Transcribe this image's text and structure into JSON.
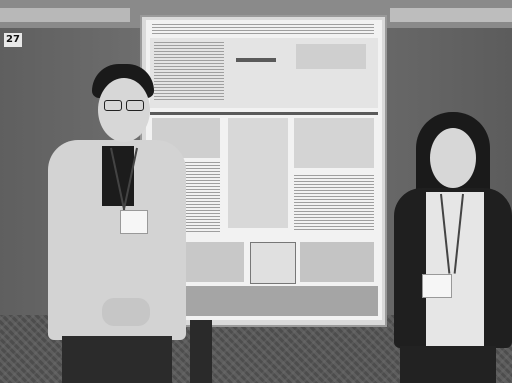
{
  "scene": {
    "description_label": "",
    "booth_number": "27"
  }
}
